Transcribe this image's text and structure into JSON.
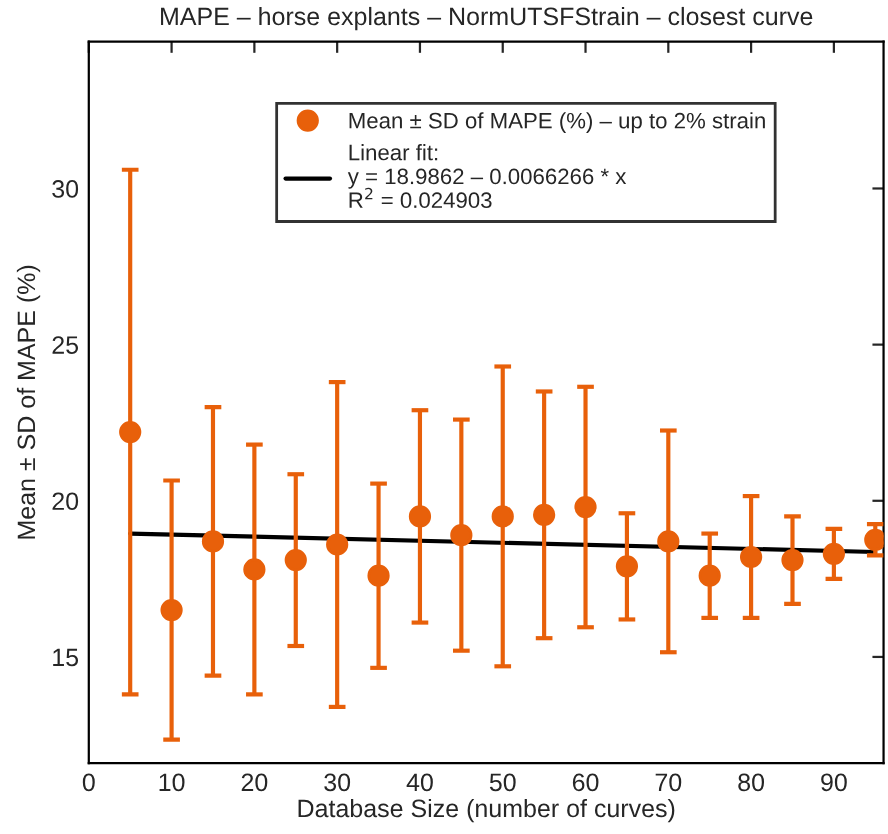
{
  "chart_data": {
    "type": "scatter",
    "title": "MAPE – horse explants – NormUTSFStrain – closest curve",
    "xlabel": "Database Size (number of curves)",
    "ylabel": "Mean ± SD of MAPE (%)",
    "xlim": [
      0,
      96
    ],
    "ylim": [
      11.6,
      34.7
    ],
    "xticks": [
      0,
      10,
      20,
      30,
      40,
      50,
      60,
      70,
      80,
      90
    ],
    "yticks": [
      15,
      20,
      25,
      30
    ],
    "grid": false,
    "legend": "top",
    "series": [
      {
        "name": "Mean ± SD of MAPE (%) – up to 2% strain",
        "marker": "circle",
        "color": "#e8600a",
        "x": [
          5,
          10,
          15,
          20,
          25,
          30,
          35,
          40,
          45,
          50,
          55,
          60,
          65,
          70,
          75,
          80,
          85,
          90,
          95
        ],
        "values": [
          22.2,
          16.5,
          18.7,
          17.8,
          18.1,
          18.6,
          17.6,
          19.5,
          18.9,
          19.5,
          19.55,
          19.8,
          17.9,
          18.7,
          17.6,
          18.2,
          18.1,
          18.3,
          18.75
        ],
        "errors": [
          8.4,
          4.15,
          4.3,
          4.0,
          2.75,
          5.2,
          2.95,
          3.4,
          3.7,
          4.8,
          3.95,
          3.85,
          1.7,
          3.55,
          1.35,
          1.95,
          1.4,
          0.8,
          0.5
        ]
      },
      {
        "name": "Linear fit:\ny = 18.9862 – 0.0066266 * x\nR$^{2}$ = 0.024903",
        "type": "line",
        "color": "#000000",
        "line_style": "solid",
        "x": [
          5,
          95
        ],
        "values": [
          18.95,
          18.36
        ]
      }
    ]
  }
}
